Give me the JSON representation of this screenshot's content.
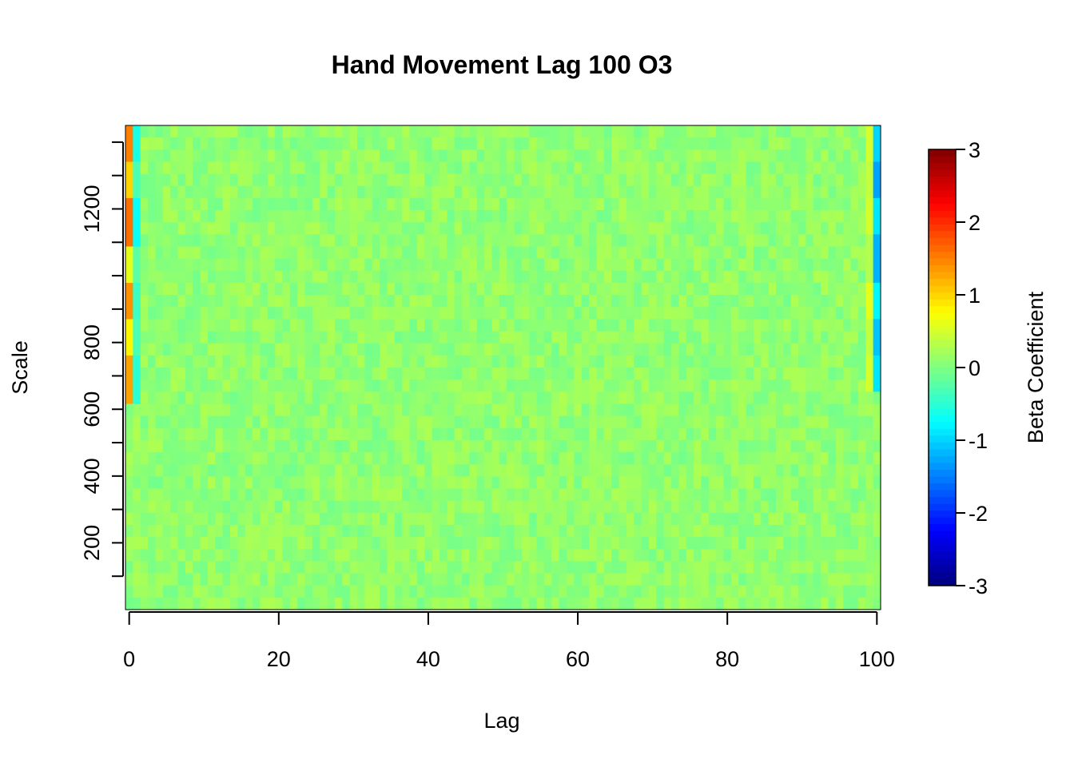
{
  "chart_data": {
    "type": "heatmap",
    "title": "Hand Movement Lag 100 O3",
    "xlabel": "Lag",
    "ylabel": "Scale",
    "xlim": [
      0,
      100
    ],
    "ylim": [
      0,
      1450
    ],
    "x_ticks": [
      0,
      20,
      40,
      60,
      80,
      100
    ],
    "y_ticks": [
      200,
      400,
      600,
      800,
      1000,
      1200
    ],
    "y_tick_labels": [
      "200",
      "400",
      "600",
      "800",
      "",
      "1200"
    ],
    "n_lags": 101,
    "color_scale": {
      "label": "Beta Coefficient",
      "min": -3,
      "max": 3,
      "ticks": [
        -3,
        -2,
        -1,
        0,
        1,
        2,
        3
      ],
      "palette": "jet"
    },
    "description_bands": [
      {
        "lag": 0,
        "scale_range": [
          630,
          1450
        ],
        "values": [
          1.5,
          1.0,
          1.6,
          0.6,
          1.4,
          0.8,
          1.3
        ]
      },
      {
        "lag": 1,
        "scale_range": [
          630,
          1450
        ],
        "values": [
          -0.6,
          -0.3,
          -0.7,
          -0.2,
          -0.4,
          -0.3,
          -0.5
        ]
      },
      {
        "lag": 99,
        "scale_range": [
          650,
          1450
        ],
        "values": [
          0.5,
          0.4,
          0.5,
          0.3,
          0.6,
          0.4,
          0.5
        ]
      },
      {
        "lag": 100,
        "scale_range": [
          650,
          1450
        ],
        "values": [
          -1.0,
          -1.3,
          -0.9,
          -1.2,
          -0.8,
          -1.1,
          -0.9
        ]
      }
    ],
    "background_value": 0.1,
    "grid": false,
    "legend": "right"
  }
}
